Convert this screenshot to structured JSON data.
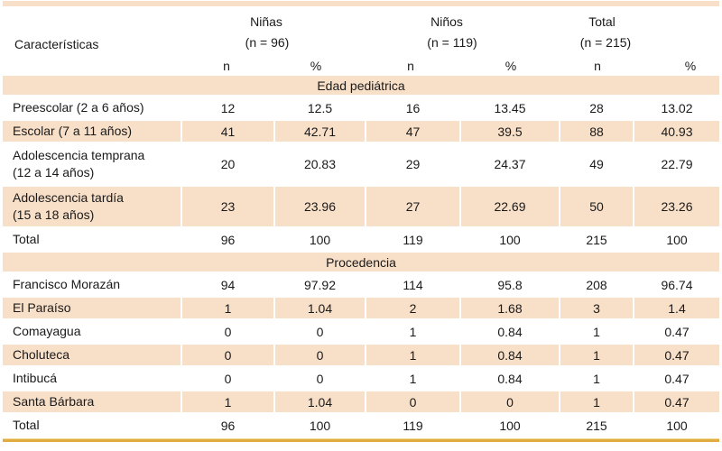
{
  "table": {
    "header": {
      "row_label": "Características",
      "groups": [
        {
          "name": "Niñas",
          "n_label": "(n = 96)"
        },
        {
          "name": "Niños",
          "n_label": "(n = 119)"
        },
        {
          "name": "Total",
          "n_label": "(n = 215)"
        }
      ],
      "subcolumns": [
        "n",
        "%",
        "n",
        "%",
        "n",
        "%"
      ]
    },
    "sections": [
      {
        "title": "Edad pediátrica",
        "rows": [
          {
            "label_lines": [
              "Preescolar (2 a 6 años)"
            ],
            "values": [
              "12",
              "12.5",
              "16",
              "13.45",
              "28",
              "13.02"
            ]
          },
          {
            "label_lines": [
              "Escolar (7 a 11 años)"
            ],
            "values": [
              "41",
              "42.71",
              "47",
              "39.5",
              "88",
              "40.93"
            ]
          },
          {
            "label_lines": [
              "Adolescencia temprana",
              "(12 a 14 años)"
            ],
            "values": [
              "20",
              "20.83",
              "29",
              "24.37",
              "49",
              "22.79"
            ]
          },
          {
            "label_lines": [
              "Adolescencia tardía",
              "(15 a 18 años)"
            ],
            "values": [
              "23",
              "23.96",
              "27",
              "22.69",
              "50",
              "23.26"
            ]
          },
          {
            "label_lines": [
              "Total"
            ],
            "values": [
              "96",
              "100",
              "119",
              "100",
              "215",
              "100"
            ]
          }
        ]
      },
      {
        "title": "Procedencia",
        "rows": [
          {
            "label_lines": [
              "Francisco Morazán"
            ],
            "values": [
              "94",
              "97.92",
              "114",
              "95.8",
              "208",
              "96.74"
            ]
          },
          {
            "label_lines": [
              "El Paraíso"
            ],
            "values": [
              "1",
              "1.04",
              "2",
              "1.68",
              "3",
              "1.4"
            ]
          },
          {
            "label_lines": [
              "Comayagua"
            ],
            "values": [
              "0",
              "0",
              "1",
              "0.84",
              "1",
              "0.47"
            ]
          },
          {
            "label_lines": [
              "Choluteca"
            ],
            "values": [
              "0",
              "0",
              "1",
              "0.84",
              "1",
              "0.47"
            ]
          },
          {
            "label_lines": [
              "Intibucá"
            ],
            "values": [
              "0",
              "0",
              "1",
              "0.84",
              "1",
              "0.47"
            ]
          },
          {
            "label_lines": [
              "Santa Bárbara"
            ],
            "values": [
              "1",
              "1.04",
              "0",
              "0",
              "1",
              "0.47"
            ]
          },
          {
            "label_lines": [
              "Total"
            ],
            "values": [
              "96",
              "100",
              "119",
              "100",
              "215",
              "100"
            ]
          }
        ]
      }
    ],
    "colors": {
      "stripe": "#f8dfc8",
      "bottom_rule": "#e0ac42",
      "text": "#1a1a1a"
    }
  }
}
